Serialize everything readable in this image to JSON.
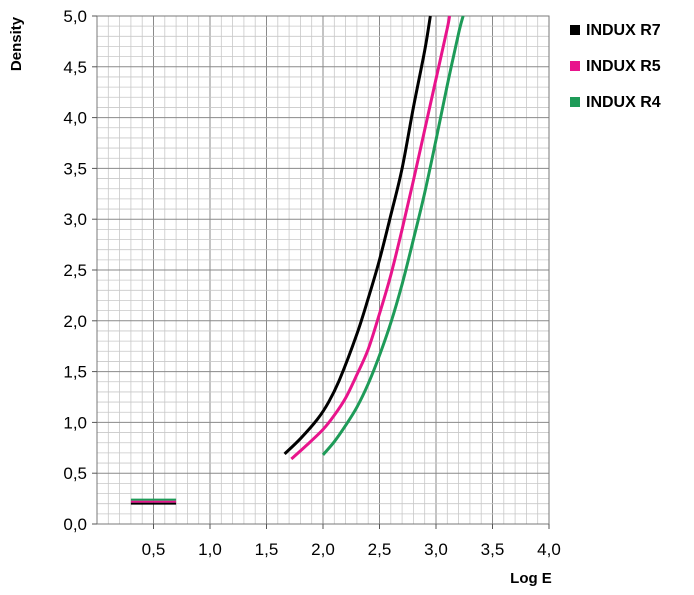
{
  "chart_data": {
    "type": "line",
    "title": "",
    "xlabel": "Log E",
    "ylabel": "Density",
    "xlim": [
      0.0,
      4.0
    ],
    "ylim": [
      0.0,
      5.0
    ],
    "x_ticks": [
      "0,5",
      "1,0",
      "1,5",
      "2,0",
      "2,5",
      "3,0",
      "3,5",
      "4,0"
    ],
    "y_ticks": [
      "0,0",
      "0,5",
      "1,0",
      "1,5",
      "2,0",
      "2,5",
      "3,0",
      "3,5",
      "4,0",
      "4,5",
      "5,0"
    ],
    "grid": true,
    "legend_position": "right",
    "series": [
      {
        "name": "INDUX R7",
        "color": "#000000",
        "base_fog": 0.2,
        "points": [
          [
            1.66,
            0.69
          ],
          [
            1.8,
            0.84
          ],
          [
            1.95,
            1.03
          ],
          [
            2.05,
            1.2
          ],
          [
            2.15,
            1.43
          ],
          [
            2.3,
            1.87
          ],
          [
            2.4,
            2.22
          ],
          [
            2.5,
            2.6
          ],
          [
            2.6,
            3.04
          ],
          [
            2.7,
            3.5
          ],
          [
            2.8,
            4.1
          ],
          [
            2.9,
            4.66
          ],
          [
            2.95,
            5.0
          ]
        ]
      },
      {
        "name": "INDUX R5",
        "color": "#e8148c",
        "base_fog": 0.22,
        "points": [
          [
            1.72,
            0.64
          ],
          [
            1.85,
            0.77
          ],
          [
            2.0,
            0.93
          ],
          [
            2.1,
            1.07
          ],
          [
            2.2,
            1.24
          ],
          [
            2.3,
            1.47
          ],
          [
            2.4,
            1.72
          ],
          [
            2.5,
            2.07
          ],
          [
            2.6,
            2.45
          ],
          [
            2.7,
            2.9
          ],
          [
            2.8,
            3.38
          ],
          [
            2.9,
            3.88
          ],
          [
            3.0,
            4.38
          ],
          [
            3.1,
            4.88
          ],
          [
            3.12,
            5.0
          ]
        ]
      },
      {
        "name": "INDUX R4",
        "color": "#1e9b58",
        "base_fog": 0.24,
        "points": [
          [
            2.0,
            0.68
          ],
          [
            2.1,
            0.81
          ],
          [
            2.2,
            0.97
          ],
          [
            2.3,
            1.15
          ],
          [
            2.4,
            1.38
          ],
          [
            2.5,
            1.66
          ],
          [
            2.6,
            1.98
          ],
          [
            2.7,
            2.36
          ],
          [
            2.8,
            2.8
          ],
          [
            2.9,
            3.26
          ],
          [
            3.0,
            3.78
          ],
          [
            3.1,
            4.32
          ],
          [
            3.2,
            4.83
          ],
          [
            3.24,
            5.0
          ]
        ]
      }
    ]
  }
}
